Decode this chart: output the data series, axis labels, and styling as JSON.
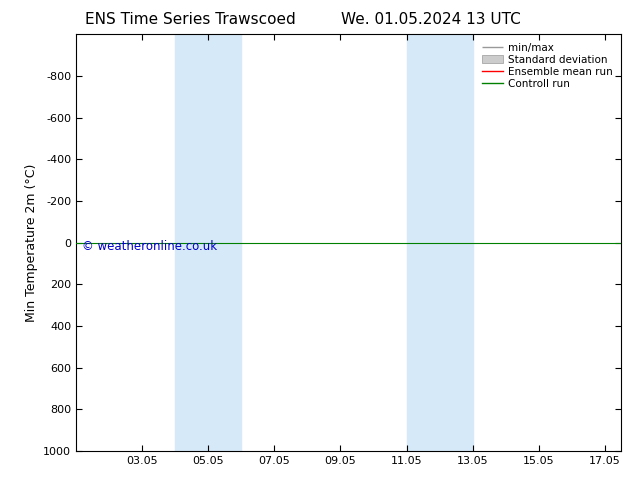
{
  "title_left": "ENS Time Series Trawscoed",
  "title_right": "We. 01.05.2024 13 UTC",
  "ylabel": "Min Temperature 2m (°C)",
  "ylim_bottom": 1000,
  "ylim_top": -1000,
  "yticks": [
    -800,
    -600,
    -400,
    -200,
    0,
    200,
    400,
    600,
    800,
    1000
  ],
  "xlim_left": 1.0,
  "xlim_right": 17.5,
  "xtick_labels": [
    "03.05",
    "05.05",
    "07.05",
    "09.05",
    "11.05",
    "13.05",
    "15.05",
    "17.05"
  ],
  "xtick_positions": [
    3,
    5,
    7,
    9,
    11,
    13,
    15,
    17
  ],
  "shade_bands": [
    {
      "xstart": 4.0,
      "xend": 6.0
    },
    {
      "xstart": 11.0,
      "xend": 13.0
    }
  ],
  "shade_color": "#d6e9f8",
  "control_run_y": 0,
  "control_run_color": "#008000",
  "control_run_lw": 0.8,
  "ensemble_mean_color": "#ff0000",
  "minmax_color": "#999999",
  "std_dev_color": "#cccccc",
  "copyright_text": "© weatheronline.co.uk",
  "copyright_color": "#0000cc",
  "background_color": "#ffffff",
  "plot_bg_color": "#ffffff",
  "border_color": "#000000",
  "title_fontsize": 11,
  "axis_label_fontsize": 9,
  "tick_fontsize": 8,
  "legend_fontsize": 7.5
}
